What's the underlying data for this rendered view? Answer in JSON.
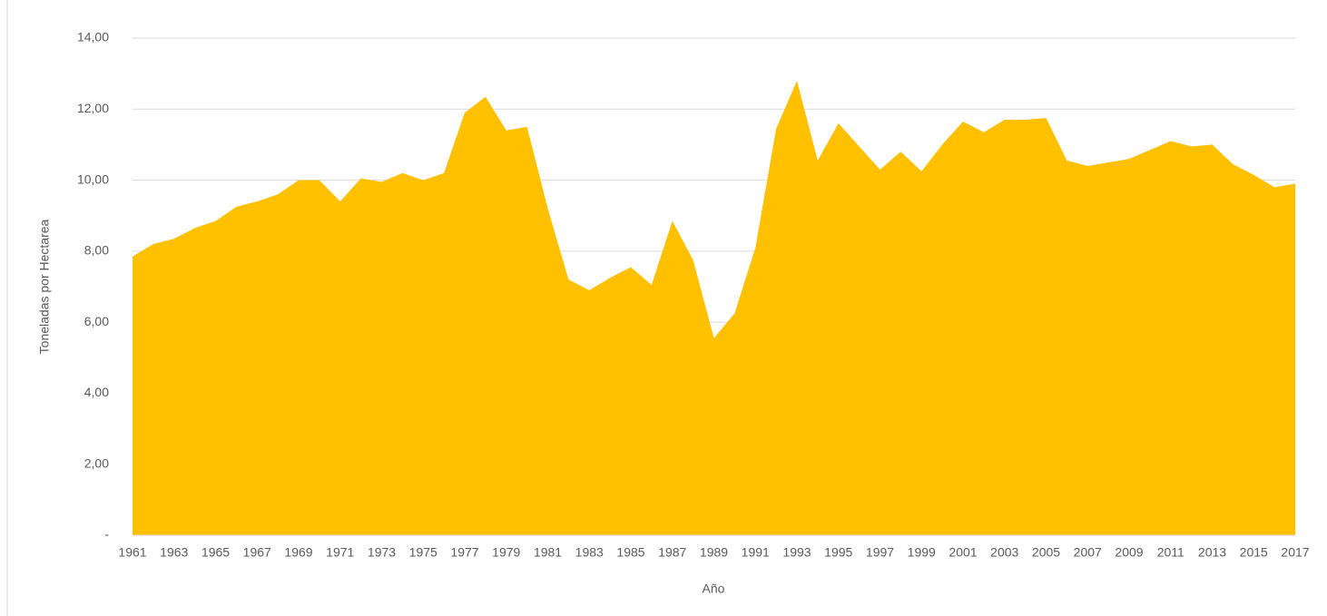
{
  "chart_data": {
    "type": "area",
    "x_label": "Año",
    "y_label": "Toneladas por Hectarea",
    "x": [
      1961,
      1962,
      1963,
      1964,
      1965,
      1966,
      1967,
      1968,
      1969,
      1970,
      1971,
      1972,
      1973,
      1974,
      1975,
      1976,
      1977,
      1978,
      1979,
      1980,
      1981,
      1982,
      1983,
      1984,
      1985,
      1986,
      1987,
      1988,
      1989,
      1990,
      1991,
      1992,
      1993,
      1994,
      1995,
      1996,
      1997,
      1998,
      1999,
      2000,
      2001,
      2002,
      2003,
      2004,
      2005,
      2006,
      2007,
      2008,
      2009,
      2010,
      2011,
      2012,
      2013,
      2014,
      2015,
      2016,
      2017
    ],
    "values": [
      7.85,
      8.2,
      8.35,
      8.65,
      8.85,
      9.25,
      9.4,
      9.6,
      10.0,
      10.0,
      9.4,
      10.05,
      9.95,
      10.2,
      10.0,
      10.2,
      11.9,
      12.35,
      11.4,
      11.5,
      9.2,
      7.2,
      6.9,
      7.25,
      7.55,
      7.05,
      8.85,
      7.75,
      5.55,
      6.25,
      8.1,
      11.45,
      12.8,
      10.55,
      11.6,
      10.95,
      10.3,
      10.8,
      10.25,
      11.0,
      11.65,
      11.35,
      11.7,
      11.7,
      11.75,
      10.55,
      10.4,
      10.5,
      10.6,
      10.85,
      11.1,
      10.95,
      11.0,
      10.45,
      10.15,
      9.8,
      9.9
    ],
    "color": "#FFC000",
    "xlim": [
      1961,
      2017
    ],
    "xticks": [
      1961,
      1963,
      1965,
      1967,
      1969,
      1971,
      1973,
      1975,
      1977,
      1979,
      1981,
      1983,
      1985,
      1987,
      1989,
      1991,
      1993,
      1995,
      1997,
      1999,
      2001,
      2003,
      2005,
      2007,
      2009,
      2011,
      2013,
      2015,
      2017
    ],
    "ylim": [
      0,
      14
    ],
    "yticks": [
      {
        "value": 0,
        "label": "-"
      },
      {
        "value": 2,
        "label": "2,00"
      },
      {
        "value": 4,
        "label": "4,00"
      },
      {
        "value": 6,
        "label": "6,00"
      },
      {
        "value": 8,
        "label": "8,00"
      },
      {
        "value": 10,
        "label": "10,00"
      },
      {
        "value": 12,
        "label": "12,00"
      },
      {
        "value": 14,
        "label": "14,00"
      }
    ],
    "grid": true
  }
}
